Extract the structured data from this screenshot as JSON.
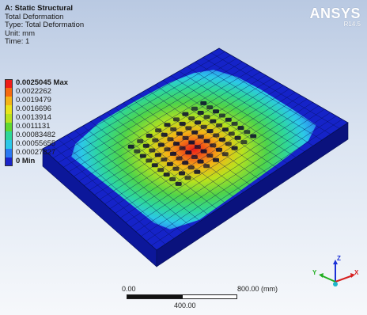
{
  "header": {
    "title": "A: Static Structural",
    "lines": [
      "Total Deformation",
      "Type: Total Deformation",
      "Unit: mm",
      "Time: 1"
    ]
  },
  "logo": {
    "brand": "ANSYS",
    "version": "R14.5"
  },
  "legend": {
    "entries": [
      {
        "label": "0.0025045 Max",
        "color": "#ee1c18",
        "bold": true
      },
      {
        "label": "0.0022262",
        "color": "#f56a10"
      },
      {
        "label": "0.0019479",
        "color": "#f4b416"
      },
      {
        "label": "0.0016696",
        "color": "#e9e41a"
      },
      {
        "label": "0.0013914",
        "color": "#b8e21e"
      },
      {
        "label": "0.0011131",
        "color": "#5fd832"
      },
      {
        "label": "0.00083482",
        "color": "#2ed79a"
      },
      {
        "label": "0.00055655",
        "color": "#2cc8e8"
      },
      {
        "label": "0.00027827",
        "color": "#2a79f2"
      },
      {
        "label": "0 Min",
        "color": "#1a24c9",
        "bold": true
      }
    ]
  },
  "scale": {
    "start": "0.00",
    "end": "800.00 (mm)",
    "mid": "400.00"
  },
  "triad": {
    "z": "Z",
    "y": "Y",
    "x": "X"
  },
  "colors": {
    "base": "#1523c8",
    "side_front": "#0c179a",
    "side_right": "#0a127d",
    "mesh": "#061055",
    "holes": "#07092e"
  }
}
